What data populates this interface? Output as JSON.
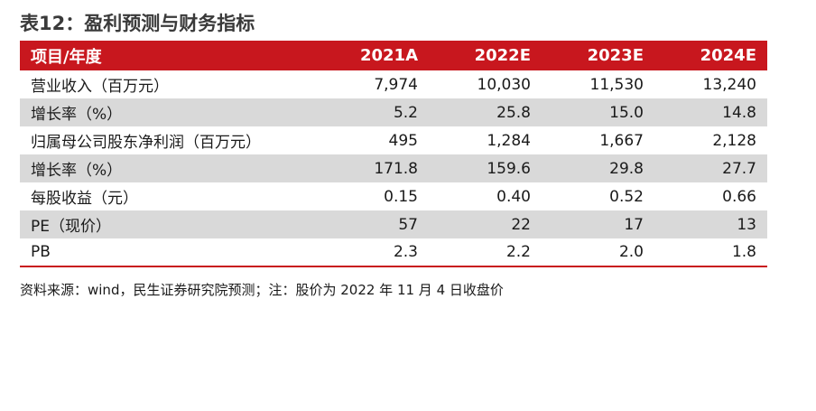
{
  "title": "表12：盈利预测与财务指标",
  "colors": {
    "header_bg": "#c8171e",
    "shade_row": "#d9d9d9",
    "header_text": "#ffffff"
  },
  "header": [
    "项目/年度",
    "2021A",
    "2022E",
    "2023E",
    "2024E"
  ],
  "rows": [
    {
      "label": "营业收入（百万元）",
      "values": [
        "7,974",
        "10,030",
        "11,530",
        "13,240"
      ]
    },
    {
      "label": "增长率（%）",
      "values": [
        "5.2",
        "25.8",
        "15.0",
        "14.8"
      ]
    },
    {
      "label": "归属母公司股东净利润（百万元）",
      "values": [
        "495",
        "1,284",
        "1,667",
        "2,128"
      ]
    },
    {
      "label": "增长率（%）",
      "values": [
        "171.8",
        "159.6",
        "29.8",
        "27.7"
      ]
    },
    {
      "label": "每股收益（元）",
      "values": [
        "0.15",
        "0.40",
        "0.52",
        "0.66"
      ]
    },
    {
      "label": "PE（现价）",
      "values": [
        "57",
        "22",
        "17",
        "13"
      ]
    },
    {
      "label": "PB",
      "values": [
        "2.3",
        "2.2",
        "2.0",
        "1.8"
      ]
    }
  ],
  "source": "资料来源：wind，民生证券研究院预测；注：股价为 2022 年 11 月 4 日收盘价"
}
